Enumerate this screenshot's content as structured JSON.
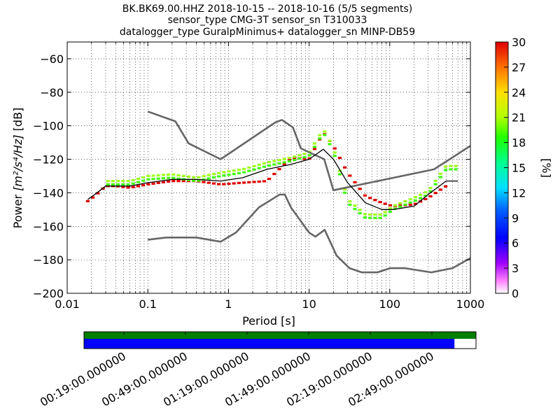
{
  "title_lines": [
    "BK.BK69.00.HHZ   2018-10-15 -- 2018-10-16  (5/5 segments)",
    "sensor_type CMG-3T sensor_sn T310033",
    "datalogger_type GuralpMinimus+ datalogger_sn MINP-DB59"
  ],
  "chart_data": {
    "type": "heatmap",
    "xlabel": "Period [s]",
    "ylabel_prefix": "Power ",
    "ylabel_unit": "[m²/s⁴/Hz]",
    "ylabel_suffix": " [dB]",
    "xscale": "log",
    "xlim": [
      0.01,
      1000
    ],
    "ylim": [
      -200,
      -50
    ],
    "x_ticks": [
      0.01,
      0.1,
      1,
      10,
      100,
      1000
    ],
    "x_tick_labels": [
      "0.01",
      "0.1",
      "1",
      "10",
      "100",
      "1000"
    ],
    "y_ticks": [
      -200,
      -180,
      -160,
      -140,
      -120,
      -100,
      -80,
      -60
    ],
    "y_tick_labels": [
      "−200",
      "−180",
      "−160",
      "−140",
      "−120",
      "−100",
      "−80",
      "−60"
    ],
    "grid": true,
    "colorbar": {
      "label": "[%]",
      "min": 0,
      "max": 30,
      "ticks": [
        0,
        3,
        6,
        9,
        12,
        15,
        18,
        21,
        24,
        27,
        30
      ],
      "tick_labels": [
        "0",
        "3",
        "6",
        "9",
        "12",
        "15",
        "18",
        "21",
        "24",
        "27",
        "30"
      ]
    },
    "noise_models": {
      "high": {
        "x": [
          0.1,
          0.22,
          0.32,
          0.8,
          3.8,
          4.6,
          6.3,
          7.9,
          15.4,
          20,
          354,
          1000
        ],
        "y": [
          -91.5,
          -97.4,
          -110.5,
          -120,
          -98,
          -96.5,
          -101,
          -113.5,
          -120,
          -138.5,
          -126,
          -112
        ]
      },
      "low": {
        "x": [
          0.1,
          0.17,
          0.4,
          0.8,
          1.24,
          2.4,
          4.3,
          5,
          6,
          10,
          12,
          15.6,
          21.9,
          31.6,
          45,
          70,
          101,
          154,
          328,
          600,
          1000
        ],
        "y": [
          -168,
          -166.7,
          -166.7,
          -169.2,
          -163.7,
          -148.6,
          -141.1,
          -141.1,
          -149,
          -163.8,
          -166.2,
          -162.1,
          -177.5,
          -185,
          -187.5,
          -187.5,
          -185,
          -185,
          -187.5,
          -185,
          -179
        ]
      }
    },
    "mean_curve": {
      "x": [
        0.018,
        0.022,
        0.03,
        0.04,
        0.06,
        0.1,
        0.2,
        0.4,
        0.8,
        1.5,
        3,
        6,
        10,
        15,
        20,
        30,
        50,
        80,
        110,
        200,
        300,
        500,
        700
      ],
      "y": [
        -144,
        -141,
        -136,
        -136,
        -136,
        -134,
        -132,
        -132,
        -133,
        -131,
        -126,
        -123,
        -120,
        -114,
        -120,
        -134,
        -146,
        -150,
        -150,
        -148,
        -141,
        -133,
        -133
      ]
    },
    "mode_curve": {
      "x": [
        0.018,
        0.022,
        0.03,
        0.04,
        0.06,
        0.1,
        0.2,
        0.4,
        0.8,
        1.5,
        3,
        6,
        10,
        15,
        20,
        30,
        50,
        80,
        110,
        200,
        300,
        500
      ],
      "y": [
        -145,
        -142,
        -136,
        -136,
        -137,
        -135,
        -133,
        -133,
        -135,
        -134,
        -133,
        -119,
        -120,
        -104,
        -112,
        -128,
        -142,
        -146,
        -148,
        -147,
        -143,
        -136
      ]
    },
    "spread_curve": {
      "x": [
        0.03,
        0.06,
        0.1,
        0.2,
        0.4,
        0.8,
        1.5,
        3,
        6,
        10,
        15,
        20,
        30,
        50,
        80,
        110,
        200,
        300,
        500,
        700
      ],
      "y": [
        -135,
        -135,
        -132,
        -131,
        -133,
        -130,
        -128,
        -124,
        -121,
        -118,
        -104,
        -115,
        -146,
        -155,
        -155,
        -150,
        -145,
        -141,
        -126,
        -126
      ]
    }
  },
  "timeline": {
    "labels": [
      "00:19:00.000000",
      "00:49:00.000000",
      "01:19:00.000000",
      "01:49:00.000000",
      "02:19:00.000000",
      "02:49:00.000000"
    ],
    "data_bar_color": "#0000ff",
    "coverage_bar_color": "#008000",
    "data_fraction": 0.945
  },
  "colors": {
    "noise_model": "#666666",
    "mean": "#000000"
  }
}
